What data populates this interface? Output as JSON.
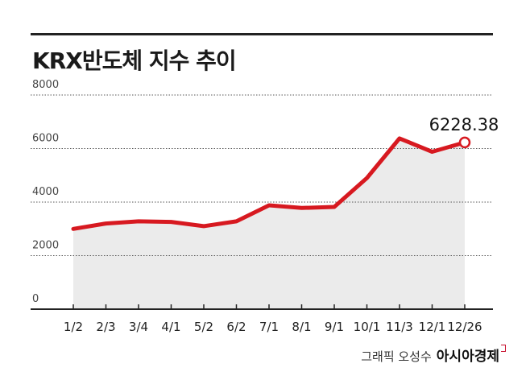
{
  "title": "KRX반도체 지수 추이",
  "credit": {
    "graphic": "그래픽 오성수",
    "brand": "아시아경제"
  },
  "colors": {
    "line": "#d71920",
    "area": "#ebebeb",
    "grid": "#555555",
    "text": "#222222"
  },
  "chart_data": {
    "type": "area",
    "title": "KRX반도체 지수 추이",
    "xlabel": "",
    "ylabel": "",
    "categories": [
      "1/2",
      "2/3",
      "3/4",
      "4/1",
      "5/2",
      "6/2",
      "7/1",
      "8/1",
      "9/1",
      "10/1",
      "11/3",
      "12/1",
      "12/26"
    ],
    "series": [
      {
        "values": [
          3000,
          3200,
          3280,
          3260,
          3100,
          3280,
          3880,
          3780,
          3820,
          4900,
          6380,
          5880,
          6228.38
        ]
      }
    ],
    "yticks": [
      0,
      2000,
      4000,
      6000,
      8000
    ],
    "ylim": [
      0,
      8000
    ],
    "annotation": {
      "label": "6228.38",
      "category": "12/26",
      "value": 6228.38
    },
    "grid": "horizontal dotted"
  }
}
